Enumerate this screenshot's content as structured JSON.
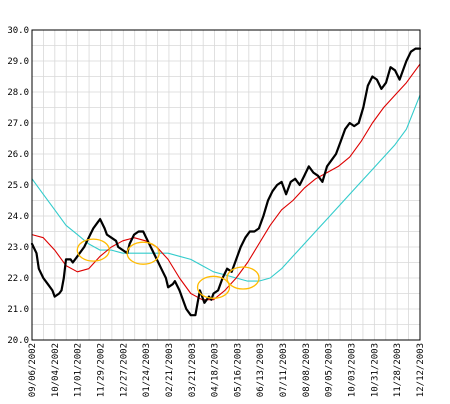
{
  "chart_data": {
    "type": "line",
    "x_labels": [
      "09/06/2002",
      "10/04/2002",
      "11/01/2002",
      "11/29/2002",
      "12/27/2002",
      "01/24/2003",
      "02/21/2003",
      "03/21/2003",
      "04/18/2003",
      "05/16/2003",
      "06/13/2003",
      "07/11/2003",
      "08/08/2003",
      "09/05/2003",
      "10/03/2003",
      "10/31/2003",
      "11/28/2003",
      "12/12/2003"
    ],
    "y_tick_labels": [
      "20.0",
      "21.0",
      "22.0",
      "23.0",
      "24.0",
      "25.0",
      "26.0",
      "27.0",
      "28.0",
      "29.0",
      "30.0"
    ],
    "ylim": [
      20.0,
      30.0
    ],
    "grid": true,
    "colors": {
      "price": "#000000",
      "fast_ma": "#dd0000",
      "slow_ma": "#33cccc",
      "marker": "#ffbb00",
      "grid": "#d8d8d8",
      "border": "#000000"
    },
    "series": [
      {
        "key": "price",
        "values": [
          [
            0,
            23.1
          ],
          [
            2,
            22.8
          ],
          [
            3,
            22.3
          ],
          [
            5,
            22.0
          ],
          [
            7,
            21.8
          ],
          [
            9,
            21.6
          ],
          [
            10,
            21.4
          ],
          [
            12,
            21.5
          ],
          [
            13,
            21.6
          ],
          [
            14,
            22.0
          ],
          [
            15,
            22.6
          ],
          [
            17,
            22.6
          ],
          [
            18,
            22.5
          ],
          [
            20,
            22.7
          ],
          [
            22,
            22.9
          ],
          [
            23,
            23.0
          ],
          [
            25,
            23.3
          ],
          [
            27,
            23.6
          ],
          [
            29,
            23.8
          ],
          [
            30,
            23.9
          ],
          [
            32,
            23.6
          ],
          [
            33,
            23.4
          ],
          [
            35,
            23.3
          ],
          [
            37,
            23.2
          ],
          [
            38,
            23.0
          ],
          [
            40,
            22.9
          ],
          [
            42,
            22.8
          ],
          [
            43,
            23.1
          ],
          [
            45,
            23.4
          ],
          [
            47,
            23.5
          ],
          [
            49,
            23.5
          ],
          [
            51,
            23.2
          ],
          [
            53,
            22.9
          ],
          [
            55,
            22.6
          ],
          [
            57,
            22.3
          ],
          [
            59,
            22.0
          ],
          [
            60,
            21.7
          ],
          [
            62,
            21.8
          ],
          [
            63,
            21.9
          ],
          [
            65,
            21.6
          ],
          [
            67,
            21.2
          ],
          [
            68,
            21.0
          ],
          [
            70,
            20.8
          ],
          [
            72,
            20.8
          ],
          [
            73,
            21.2
          ],
          [
            74,
            21.6
          ],
          [
            75,
            21.4
          ],
          [
            76,
            21.2
          ],
          [
            78,
            21.4
          ],
          [
            79,
            21.3
          ],
          [
            80,
            21.5
          ],
          [
            82,
            21.6
          ],
          [
            84,
            22.0
          ],
          [
            86,
            22.3
          ],
          [
            88,
            22.2
          ],
          [
            90,
            22.6
          ],
          [
            92,
            23.0
          ],
          [
            94,
            23.3
          ],
          [
            96,
            23.5
          ],
          [
            98,
            23.5
          ],
          [
            100,
            23.6
          ],
          [
            102,
            24.0
          ],
          [
            104,
            24.5
          ],
          [
            106,
            24.8
          ],
          [
            108,
            25.0
          ],
          [
            110,
            25.1
          ],
          [
            112,
            24.7
          ],
          [
            114,
            25.1
          ],
          [
            116,
            25.2
          ],
          [
            118,
            25.0
          ],
          [
            120,
            25.3
          ],
          [
            122,
            25.6
          ],
          [
            124,
            25.4
          ],
          [
            126,
            25.3
          ],
          [
            128,
            25.1
          ],
          [
            130,
            25.6
          ],
          [
            132,
            25.8
          ],
          [
            134,
            26.0
          ],
          [
            136,
            26.4
          ],
          [
            138,
            26.8
          ],
          [
            140,
            27.0
          ],
          [
            142,
            26.9
          ],
          [
            144,
            27.0
          ],
          [
            146,
            27.5
          ],
          [
            148,
            28.2
          ],
          [
            150,
            28.5
          ],
          [
            152,
            28.4
          ],
          [
            154,
            28.1
          ],
          [
            156,
            28.3
          ],
          [
            158,
            28.8
          ],
          [
            160,
            28.7
          ],
          [
            162,
            28.4
          ],
          [
            164,
            28.8
          ],
          [
            165,
            29.0
          ],
          [
            167,
            29.3
          ],
          [
            169,
            29.4
          ],
          [
            171,
            29.4
          ]
        ]
      },
      {
        "key": "fast_ma",
        "values": [
          [
            0,
            23.4
          ],
          [
            5,
            23.3
          ],
          [
            10,
            22.9
          ],
          [
            15,
            22.4
          ],
          [
            20,
            22.2
          ],
          [
            25,
            22.3
          ],
          [
            30,
            22.7
          ],
          [
            35,
            23.0
          ],
          [
            40,
            23.2
          ],
          [
            45,
            23.3
          ],
          [
            50,
            23.2
          ],
          [
            55,
            23.0
          ],
          [
            60,
            22.6
          ],
          [
            65,
            22.0
          ],
          [
            70,
            21.5
          ],
          [
            75,
            21.3
          ],
          [
            80,
            21.3
          ],
          [
            85,
            21.6
          ],
          [
            90,
            22.0
          ],
          [
            95,
            22.5
          ],
          [
            100,
            23.1
          ],
          [
            105,
            23.7
          ],
          [
            110,
            24.2
          ],
          [
            115,
            24.5
          ],
          [
            120,
            24.9
          ],
          [
            125,
            25.2
          ],
          [
            130,
            25.4
          ],
          [
            135,
            25.6
          ],
          [
            140,
            25.9
          ],
          [
            145,
            26.4
          ],
          [
            150,
            27.0
          ],
          [
            155,
            27.5
          ],
          [
            160,
            27.9
          ],
          [
            165,
            28.3
          ],
          [
            171,
            28.9
          ]
        ]
      },
      {
        "key": "slow_ma",
        "values": [
          [
            0,
            25.2
          ],
          [
            5,
            24.7
          ],
          [
            10,
            24.2
          ],
          [
            15,
            23.7
          ],
          [
            20,
            23.4
          ],
          [
            25,
            23.1
          ],
          [
            30,
            22.9
          ],
          [
            35,
            22.9
          ],
          [
            40,
            22.8
          ],
          [
            45,
            22.8
          ],
          [
            50,
            22.8
          ],
          [
            55,
            22.8
          ],
          [
            60,
            22.8
          ],
          [
            65,
            22.7
          ],
          [
            70,
            22.6
          ],
          [
            75,
            22.4
          ],
          [
            80,
            22.2
          ],
          [
            85,
            22.1
          ],
          [
            90,
            22.0
          ],
          [
            95,
            21.9
          ],
          [
            100,
            21.9
          ],
          [
            105,
            22.0
          ],
          [
            110,
            22.3
          ],
          [
            115,
            22.7
          ],
          [
            120,
            23.1
          ],
          [
            125,
            23.5
          ],
          [
            130,
            23.9
          ],
          [
            135,
            24.3
          ],
          [
            140,
            24.7
          ],
          [
            145,
            25.1
          ],
          [
            150,
            25.5
          ],
          [
            155,
            25.9
          ],
          [
            160,
            26.3
          ],
          [
            165,
            26.8
          ],
          [
            171,
            27.9
          ]
        ]
      }
    ],
    "markers": [
      [
        27,
        22.9
      ],
      [
        49,
        22.8
      ],
      [
        80,
        21.7
      ],
      [
        93,
        22.0
      ]
    ],
    "x_count": 171
  }
}
